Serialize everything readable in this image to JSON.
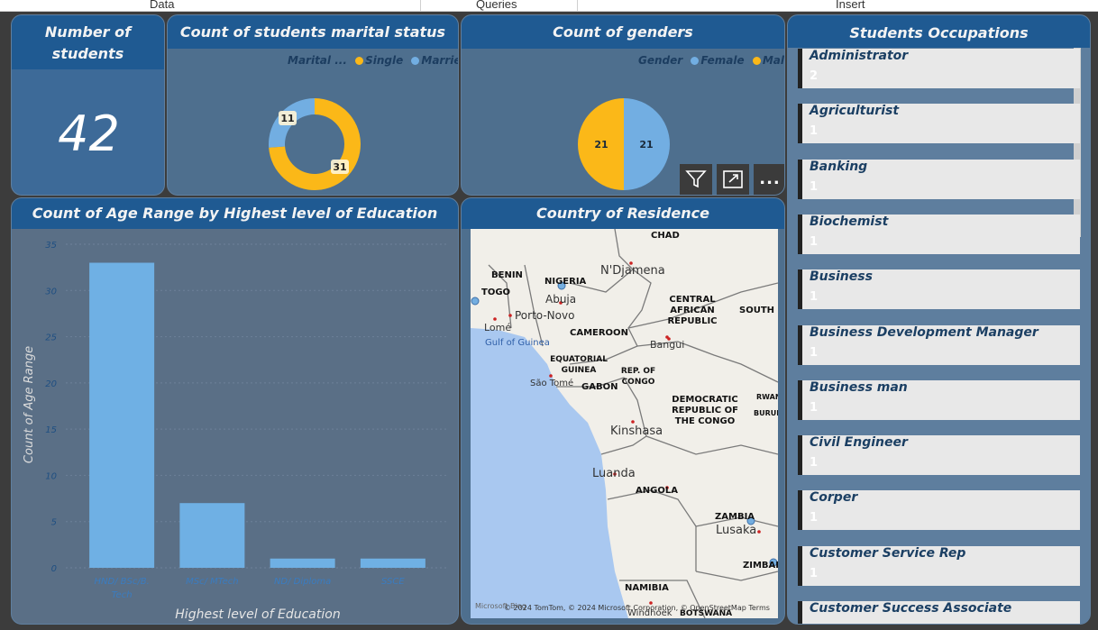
{
  "ribbon": {
    "tab_data": "Data",
    "tab_queries": "Queries",
    "tab_insert": "Insert"
  },
  "number_card": {
    "title": "Number of students",
    "value": "42"
  },
  "marital": {
    "title": "Count of students marital status",
    "legend_title": "Marital ...",
    "series": [
      {
        "name": "Single",
        "value": 31,
        "color": "#fbb818"
      },
      {
        "name": "Married",
        "value": 11,
        "color": "#72aee2"
      }
    ],
    "label_single": "31",
    "label_married": "11"
  },
  "gender": {
    "title": "Count of genders",
    "legend_title": "Gender",
    "series": [
      {
        "name": "Female",
        "value": 21,
        "color": "#72aee2"
      },
      {
        "name": "Male",
        "value": 21,
        "color": "#fbb818"
      }
    ],
    "label_female": "21",
    "label_male": "21"
  },
  "toolbar": {
    "filter_icon": "filter-icon",
    "focus_icon": "focus-mode-icon",
    "more_icon": "more-options-icon",
    "more_label": "..."
  },
  "occupations": {
    "title": "Students Occupations",
    "items": [
      {
        "name": "Administrator",
        "value": "2"
      },
      {
        "name": "Agriculturist",
        "value": "1"
      },
      {
        "name": "Banking",
        "value": "1"
      },
      {
        "name": "Biochemist",
        "value": "1"
      },
      {
        "name": "Business",
        "value": "1"
      },
      {
        "name": "Business Development Manager",
        "value": "1"
      },
      {
        "name": "Business man",
        "value": "1"
      },
      {
        "name": "Civil Engineer",
        "value": "1"
      },
      {
        "name": "Corper",
        "value": "1"
      },
      {
        "name": "Customer Service Rep",
        "value": "1"
      },
      {
        "name": "Customer Success Associate",
        "value": ""
      }
    ]
  },
  "chart_data": {
    "type": "bar",
    "title": "Count of Age Range by Highest level of Education",
    "xlabel": "Highest level of Education",
    "ylabel": "Count of Age Range",
    "categories": [
      "HND/ BSc/B. Tech",
      "MSc/ MTech",
      "ND/ Diploma",
      "SSCE"
    ],
    "category_lines": [
      [
        "HND/ BSc/B.",
        "Tech"
      ],
      [
        "MSc/ MTech"
      ],
      [
        "ND/ Diploma"
      ],
      [
        "SSCE"
      ]
    ],
    "values": [
      33,
      7,
      1,
      1
    ],
    "ylim": [
      0,
      35
    ],
    "yticks": [
      "0",
      "5",
      "10",
      "15",
      "20",
      "25",
      "30",
      "35"
    ],
    "color": "#6fb0e4",
    "grid": true
  },
  "map": {
    "title": "Country of Residence",
    "countries": [
      "CHAD",
      "BENIN",
      "NIGERIA",
      "TOGO",
      "CENTRAL AFRICAN REPUBLIC",
      "SOUTH S",
      "CAMEROON",
      "EQUATORIAL GUINEA",
      "REP. OF CONGO",
      "GABON",
      "DEMOCRATIC REPUBLIC OF THE CONGO",
      "RWAN",
      "BURUN",
      "ANGOLA",
      "ZAMBIA",
      "ZIMBAB",
      "NAMIBIA",
      "BOTSWANA"
    ],
    "cities": [
      "N'Djamena",
      "Abuja",
      "Porto-Novo",
      "Lomé",
      "Bangui",
      "São Tomé",
      "Kinshasa",
      "Luanda",
      "Lusaka",
      "Windhoek"
    ],
    "water": "Gulf of Guinea",
    "copyright": "© 2024 TomTom, © 2024 Microsoft Corporation, © OpenStreetMap Terms",
    "brand": "Microsoft Bing"
  }
}
